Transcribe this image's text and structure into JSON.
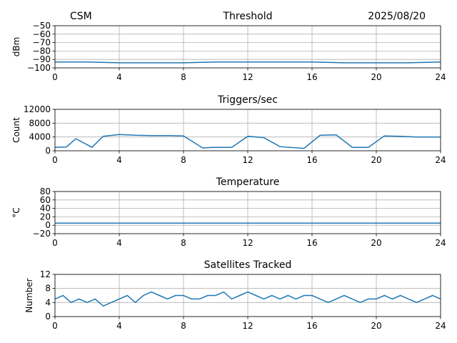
{
  "header": {
    "left": "CSM",
    "right": "2025/08/20"
  },
  "colors": {
    "series": "#1f77b4",
    "grid": "#b0b0b0",
    "axis": "#000000"
  },
  "chart_data": [
    {
      "type": "line",
      "title": "Threshold",
      "ylabel": "dBm",
      "xlim": [
        0,
        24
      ],
      "ylim": [
        -100,
        -50
      ],
      "xticks": [
        0,
        4,
        8,
        12,
        16,
        20,
        24
      ],
      "yticks": [
        -100,
        -90,
        -80,
        -70,
        -60,
        -50
      ],
      "grid": true,
      "series": [
        {
          "x": [
            0,
            2,
            4,
            6,
            8,
            10,
            12,
            14,
            16,
            18,
            20,
            22,
            24
          ],
          "y": [
            -93,
            -93,
            -94,
            -94,
            -94,
            -93,
            -93,
            -93,
            -93,
            -94,
            -94,
            -94,
            -93
          ]
        }
      ]
    },
    {
      "type": "line",
      "title": "Triggers/sec",
      "ylabel": "Count",
      "xlim": [
        0,
        24
      ],
      "ylim": [
        0,
        12000
      ],
      "xticks": [
        0,
        4,
        8,
        12,
        16,
        20,
        24
      ],
      "yticks": [
        0,
        4000,
        8000,
        12000
      ],
      "grid": true,
      "series": [
        {
          "x": [
            0,
            0.7,
            1.3,
            2.3,
            3.0,
            4.0,
            5.0,
            6.0,
            7.0,
            8.0,
            9.2,
            9.8,
            11.0,
            12.0,
            13.0,
            14.0,
            15.5,
            16.5,
            17.5,
            18.5,
            19.5,
            20.5,
            21.5,
            22.5,
            24
          ],
          "y": [
            1000,
            1100,
            3500,
            1000,
            4200,
            4700,
            4500,
            4400,
            4400,
            4300,
            800,
            1000,
            1000,
            4200,
            3800,
            1200,
            700,
            4500,
            4600,
            1000,
            1000,
            4300,
            4200,
            4000,
            4000
          ]
        }
      ]
    },
    {
      "type": "line",
      "title": "Temperature",
      "ylabel": "°C",
      "xlim": [
        0,
        24
      ],
      "ylim": [
        -20,
        80
      ],
      "xticks": [
        0,
        4,
        8,
        12,
        16,
        20,
        24
      ],
      "yticks": [
        -20,
        0,
        20,
        40,
        60,
        80
      ],
      "grid": true,
      "series": [
        {
          "x": [
            0,
            4,
            8,
            12,
            16,
            20,
            24
          ],
          "y": [
            5,
            5,
            5,
            5,
            5,
            5,
            5
          ]
        }
      ]
    },
    {
      "type": "line",
      "title": "Satellites Tracked",
      "ylabel": "Number",
      "xlim": [
        0,
        24
      ],
      "ylim": [
        0,
        12
      ],
      "xticks": [
        0,
        4,
        8,
        12,
        16,
        20,
        24
      ],
      "yticks": [
        0,
        4,
        8,
        12
      ],
      "grid": true,
      "series": [
        {
          "x": [
            0,
            0.5,
            1,
            1.5,
            2,
            2.5,
            3,
            3.5,
            4,
            4.5,
            5,
            5.5,
            6,
            6.5,
            7,
            7.5,
            8,
            8.5,
            9,
            9.5,
            10,
            10.5,
            11,
            11.5,
            12,
            12.5,
            13,
            13.5,
            14,
            14.5,
            15,
            15.5,
            16,
            16.5,
            17,
            17.5,
            18,
            18.5,
            19,
            19.5,
            20,
            20.5,
            21,
            21.5,
            22,
            22.5,
            23,
            23.5,
            24
          ],
          "y": [
            5,
            6,
            4,
            5,
            4,
            5,
            3,
            4,
            5,
            6,
            4,
            6,
            7,
            6,
            5,
            6,
            6,
            5,
            5,
            6,
            6,
            7,
            5,
            6,
            7,
            6,
            5,
            6,
            5,
            6,
            5,
            6,
            6,
            5,
            4,
            5,
            6,
            5,
            4,
            5,
            5,
            6,
            5,
            6,
            5,
            4,
            5,
            6,
            5
          ]
        }
      ]
    }
  ]
}
